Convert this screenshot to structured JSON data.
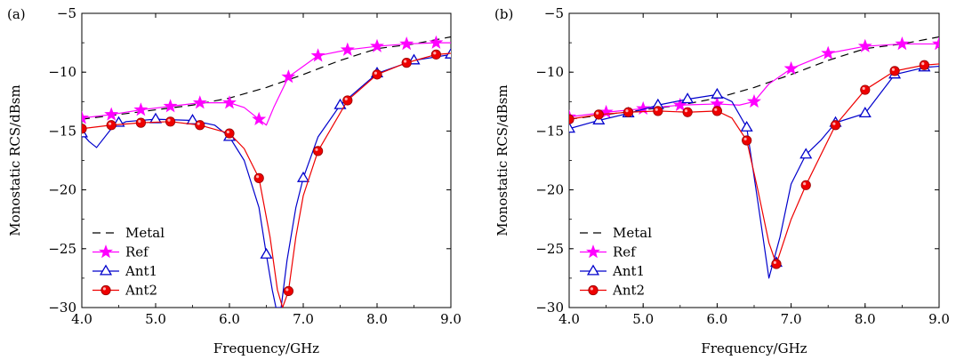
{
  "chart_data": [
    {
      "type": "line",
      "panel_label": "(a)",
      "xlabel": "Frequency/GHz",
      "ylabel": "Monostatic RCS/dBsm",
      "xlim": [
        4.0,
        9.0
      ],
      "ylim": [
        -30,
        -5
      ],
      "xticks": [
        4.0,
        5.0,
        6.0,
        7.0,
        8.0,
        9.0
      ],
      "xtick_labels": [
        "4.0",
        "5.0",
        "6.0",
        "7.0",
        "8.0",
        "9.0"
      ],
      "yticks": [
        -5,
        -10,
        -15,
        -20,
        -25,
        -30
      ],
      "ytick_labels": [
        "−5",
        "−10",
        "−15",
        "−20",
        "−25",
        "−30"
      ],
      "grid": false,
      "legend_position": "bottom-left",
      "series": [
        {
          "name": "Metal",
          "color": "#000000",
          "style": "dashed",
          "marker": "none",
          "x": [
            4.0,
            4.5,
            5.0,
            5.5,
            6.0,
            6.5,
            7.0,
            7.5,
            8.0,
            8.5,
            9.0
          ],
          "y": [
            -14.0,
            -13.6,
            -13.2,
            -12.8,
            -12.2,
            -11.3,
            -10.2,
            -9.0,
            -8.0,
            -7.6,
            -7.0
          ]
        },
        {
          "name": "Ref",
          "color": "#ff00ff",
          "style": "solid",
          "marker": "star",
          "x": [
            4.0,
            4.4,
            4.8,
            5.2,
            5.6,
            6.0,
            6.2,
            6.4,
            6.5,
            6.6,
            6.8,
            7.2,
            7.6,
            8.0,
            8.4,
            8.8,
            9.0
          ],
          "y": [
            -13.9,
            -13.6,
            -13.2,
            -12.9,
            -12.6,
            -12.6,
            -13.0,
            -14.0,
            -14.5,
            -13.0,
            -10.4,
            -8.6,
            -8.1,
            -7.8,
            -7.6,
            -7.5,
            -7.5
          ],
          "marker_x": [
            4.0,
            4.4,
            4.8,
            5.2,
            5.6,
            6.0,
            6.4,
            6.8,
            7.2,
            7.6,
            8.0,
            8.4,
            8.8
          ],
          "marker_y": [
            -13.9,
            -13.6,
            -13.2,
            -12.9,
            -12.6,
            -12.6,
            -14.0,
            -10.4,
            -8.6,
            -8.1,
            -7.8,
            -7.6,
            -7.5
          ]
        },
        {
          "name": "Ant1",
          "color": "#0000cc",
          "style": "solid",
          "marker": "triangle",
          "x": [
            4.0,
            4.1,
            4.2,
            4.4,
            4.6,
            5.0,
            5.5,
            5.8,
            6.0,
            6.2,
            6.4,
            6.5,
            6.58,
            6.63,
            6.7,
            6.78,
            6.9,
            7.0,
            7.2,
            7.5,
            8.0,
            8.5,
            9.0
          ],
          "y": [
            -15.2,
            -15.9,
            -16.4,
            -14.8,
            -14.2,
            -14.0,
            -14.1,
            -14.5,
            -15.5,
            -17.5,
            -21.5,
            -25.5,
            -28.5,
            -30.0,
            -30.0,
            -26.0,
            -21.5,
            -19.0,
            -15.5,
            -12.8,
            -10.1,
            -9.0,
            -8.5
          ],
          "marker_x": [
            4.0,
            4.5,
            5.0,
            5.5,
            6.0,
            6.5,
            7.0,
            7.5,
            8.0,
            8.5,
            9.0
          ],
          "marker_y": [
            -15.2,
            -14.3,
            -14.0,
            -14.1,
            -15.5,
            -25.5,
            -19.0,
            -12.8,
            -10.1,
            -9.0,
            -8.5
          ]
        },
        {
          "name": "Ant2",
          "color": "#ee0000",
          "style": "solid",
          "marker": "circle",
          "x": [
            4.0,
            4.4,
            4.8,
            5.2,
            5.6,
            6.0,
            6.2,
            6.4,
            6.55,
            6.65,
            6.72,
            6.8,
            6.9,
            7.0,
            7.2,
            7.6,
            8.0,
            8.4,
            8.8,
            9.0
          ],
          "y": [
            -14.8,
            -14.5,
            -14.3,
            -14.2,
            -14.5,
            -15.2,
            -16.5,
            -19.0,
            -24.0,
            -28.5,
            -30.0,
            -28.6,
            -24.0,
            -20.5,
            -16.7,
            -12.4,
            -10.2,
            -9.2,
            -8.5,
            -8.4
          ],
          "marker_x": [
            4.0,
            4.4,
            4.8,
            5.2,
            5.6,
            6.0,
            6.4,
            6.8,
            7.2,
            7.6,
            8.0,
            8.4,
            8.8
          ],
          "marker_y": [
            -14.8,
            -14.5,
            -14.3,
            -14.2,
            -14.5,
            -15.2,
            -19.0,
            -28.6,
            -16.7,
            -12.4,
            -10.2,
            -9.2,
            -8.5
          ]
        }
      ]
    },
    {
      "type": "line",
      "panel_label": "(b)",
      "xlabel": "Frequency/GHz",
      "ylabel": "Monostatic RCS/dBsm",
      "xlim": [
        4.0,
        9.0
      ],
      "ylim": [
        -30,
        -5
      ],
      "xticks": [
        4.0,
        5.0,
        6.0,
        7.0,
        8.0,
        9.0
      ],
      "xtick_labels": [
        "4.0",
        "5.0",
        "6.0",
        "7.0",
        "8.0",
        "9.0"
      ],
      "yticks": [
        -5,
        -10,
        -15,
        -20,
        -25,
        -30
      ],
      "ytick_labels": [
        "−5",
        "−10",
        "−15",
        "−20",
        "−25",
        "−30"
      ],
      "grid": false,
      "legend_position": "bottom-left",
      "series": [
        {
          "name": "Metal",
          "color": "#000000",
          "style": "dashed",
          "marker": "none",
          "x": [
            4.0,
            4.5,
            5.0,
            5.5,
            6.0,
            6.5,
            7.0,
            7.5,
            8.0,
            8.5,
            9.0
          ],
          "y": [
            -14.0,
            -13.6,
            -13.2,
            -12.8,
            -12.2,
            -11.3,
            -10.2,
            -9.0,
            -8.0,
            -7.6,
            -7.0
          ]
        },
        {
          "name": "Ref",
          "color": "#ff00ff",
          "style": "solid",
          "marker": "star",
          "x": [
            4.0,
            4.5,
            5.0,
            5.5,
            6.0,
            6.3,
            6.5,
            6.7,
            7.0,
            7.5,
            8.0,
            8.5,
            9.0
          ],
          "y": [
            -13.8,
            -13.4,
            -13.1,
            -12.8,
            -12.7,
            -12.8,
            -12.5,
            -11.0,
            -9.7,
            -8.4,
            -7.8,
            -7.6,
            -7.6
          ],
          "marker_x": [
            4.0,
            4.5,
            5.0,
            5.5,
            6.0,
            6.5,
            7.0,
            7.5,
            8.0,
            8.5,
            9.0
          ],
          "marker_y": [
            -13.8,
            -13.4,
            -13.1,
            -12.8,
            -12.7,
            -12.5,
            -9.7,
            -8.4,
            -7.8,
            -7.6,
            -7.6
          ]
        },
        {
          "name": "Ant1",
          "color": "#0000cc",
          "style": "solid",
          "marker": "triangle",
          "x": [
            4.0,
            4.4,
            4.8,
            5.2,
            5.6,
            6.0,
            6.2,
            6.4,
            6.55,
            6.7,
            6.85,
            7.0,
            7.2,
            7.4,
            7.6,
            8.0,
            8.4,
            8.8,
            9.0
          ],
          "y": [
            -14.8,
            -14.1,
            -13.5,
            -12.8,
            -12.3,
            -11.9,
            -12.5,
            -14.7,
            -21.0,
            -27.5,
            -24.0,
            -19.5,
            -17.0,
            -15.8,
            -14.3,
            -13.5,
            -10.2,
            -9.6,
            -9.5
          ],
          "marker_x": [
            4.0,
            4.4,
            4.8,
            5.2,
            5.6,
            6.0,
            6.4,
            6.8,
            7.2,
            7.6,
            8.0,
            8.4,
            8.8
          ],
          "marker_y": [
            -14.8,
            -14.1,
            -13.5,
            -12.8,
            -12.3,
            -11.9,
            -14.7,
            -26.2,
            -17.0,
            -14.3,
            -13.5,
            -10.2,
            -9.6
          ]
        },
        {
          "name": "Ant2",
          "color": "#ee0000",
          "style": "solid",
          "marker": "circle",
          "x": [
            4.0,
            4.4,
            4.8,
            5.2,
            5.6,
            6.0,
            6.2,
            6.4,
            6.55,
            6.7,
            6.8,
            7.0,
            7.2,
            7.6,
            8.0,
            8.4,
            8.8,
            9.0
          ],
          "y": [
            -14.0,
            -13.6,
            -13.4,
            -13.3,
            -13.4,
            -13.3,
            -13.9,
            -15.8,
            -20.0,
            -24.5,
            -26.3,
            -22.5,
            -19.6,
            -14.5,
            -11.5,
            -9.9,
            -9.4,
            -9.3
          ],
          "marker_x": [
            4.0,
            4.4,
            4.8,
            5.2,
            5.6,
            6.0,
            6.4,
            6.8,
            7.2,
            7.6,
            8.0,
            8.4,
            8.8
          ],
          "marker_y": [
            -14.0,
            -13.6,
            -13.4,
            -13.3,
            -13.4,
            -13.3,
            -15.8,
            -26.3,
            -19.6,
            -14.5,
            -11.5,
            -9.9,
            -9.4
          ]
        }
      ]
    }
  ]
}
